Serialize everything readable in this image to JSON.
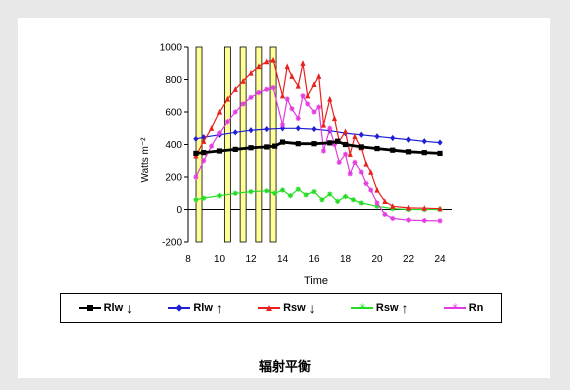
{
  "caption": "辐射平衡",
  "legend": [
    {
      "label": "Rlw",
      "arrow": "↓",
      "color": "#000000",
      "marker": "square"
    },
    {
      "label": "Rlw",
      "arrow": "↑",
      "color": "#1f1fd6",
      "marker": "diamond"
    },
    {
      "label": "Rsw",
      "arrow": "↓",
      "color": "#e8201e",
      "marker": "triangle"
    },
    {
      "label": "Rsw",
      "arrow": "↑",
      "color": "#22dd22",
      "marker": "star"
    },
    {
      "label": "Rn",
      "arrow": "",
      "color": "#e23ce0",
      "marker": "star"
    }
  ],
  "chart_data": {
    "type": "line",
    "xlabel": "Time",
    "ylabel": "Watts m⁻²",
    "xlim": [
      8,
      24
    ],
    "ylim": [
      -200,
      1000
    ],
    "xticks": [
      8,
      10,
      12,
      14,
      16,
      18,
      20,
      22,
      24
    ],
    "yticks": [
      -200,
      0,
      200,
      400,
      600,
      800,
      1000
    ],
    "highlight_times": [
      8.7,
      10.5,
      11.5,
      12.5,
      13.4
    ],
    "series": [
      {
        "name": "Rlw↓",
        "color": "#000000",
        "x": [
          8.5,
          9,
          10,
          11,
          12,
          13,
          13.5,
          14,
          15,
          16,
          17,
          17.5,
          18,
          19,
          20,
          21,
          22,
          23,
          24
        ],
        "y": [
          345,
          350,
          360,
          370,
          380,
          385,
          390,
          415,
          405,
          405,
          410,
          420,
          400,
          385,
          375,
          365,
          355,
          350,
          345
        ]
      },
      {
        "name": "Rlw↑",
        "color": "#1f1fd6",
        "x": [
          8.5,
          9,
          10,
          11,
          12,
          13,
          14,
          15,
          16,
          17,
          18,
          19,
          20,
          21,
          22,
          23,
          24
        ],
        "y": [
          435,
          445,
          460,
          475,
          488,
          495,
          500,
          500,
          495,
          485,
          470,
          460,
          450,
          440,
          430,
          420,
          412
        ]
      },
      {
        "name": "Rsw↓",
        "color": "#e8201e",
        "x": [
          8.5,
          9,
          9.5,
          10,
          10.5,
          11,
          11.5,
          12,
          12.5,
          13,
          13.4,
          14,
          14.3,
          14.6,
          15,
          15.3,
          15.6,
          16,
          16.3,
          16.6,
          17,
          17.3,
          17.6,
          18,
          18.3,
          18.6,
          19,
          19.3,
          19.6,
          20,
          20.5,
          21,
          22,
          23,
          24
        ],
        "y": [
          330,
          420,
          500,
          600,
          680,
          740,
          790,
          840,
          880,
          910,
          920,
          700,
          880,
          820,
          760,
          900,
          700,
          770,
          820,
          520,
          680,
          560,
          420,
          480,
          340,
          450,
          380,
          280,
          230,
          120,
          50,
          20,
          10,
          8,
          5
        ]
      },
      {
        "name": "Rsw↑",
        "color": "#22dd22",
        "x": [
          8.5,
          9,
          10,
          11,
          12,
          13,
          13.5,
          14,
          14.5,
          15,
          15.5,
          16,
          16.5,
          17,
          17.5,
          18,
          18.5,
          19,
          20,
          21,
          22,
          23,
          24
        ],
        "y": [
          60,
          70,
          85,
          100,
          110,
          115,
          100,
          120,
          85,
          125,
          90,
          110,
          60,
          95,
          50,
          80,
          60,
          40,
          20,
          5,
          0,
          0,
          0
        ]
      },
      {
        "name": "Rn",
        "color": "#e23ce0",
        "x": [
          8.5,
          9,
          9.5,
          10,
          10.5,
          11,
          11.5,
          12,
          12.5,
          13,
          13.4,
          14,
          14.3,
          14.6,
          15,
          15.3,
          15.6,
          16,
          16.3,
          16.6,
          17,
          17.3,
          17.6,
          18,
          18.3,
          18.6,
          19,
          19.3,
          19.6,
          20,
          20.5,
          21,
          22,
          23,
          24
        ],
        "y": [
          200,
          300,
          390,
          470,
          540,
          600,
          650,
          690,
          720,
          740,
          750,
          520,
          680,
          620,
          560,
          700,
          650,
          600,
          630,
          360,
          500,
          400,
          290,
          340,
          220,
          290,
          230,
          160,
          120,
          40,
          -30,
          -55,
          -65,
          -68,
          -70
        ]
      }
    ]
  }
}
